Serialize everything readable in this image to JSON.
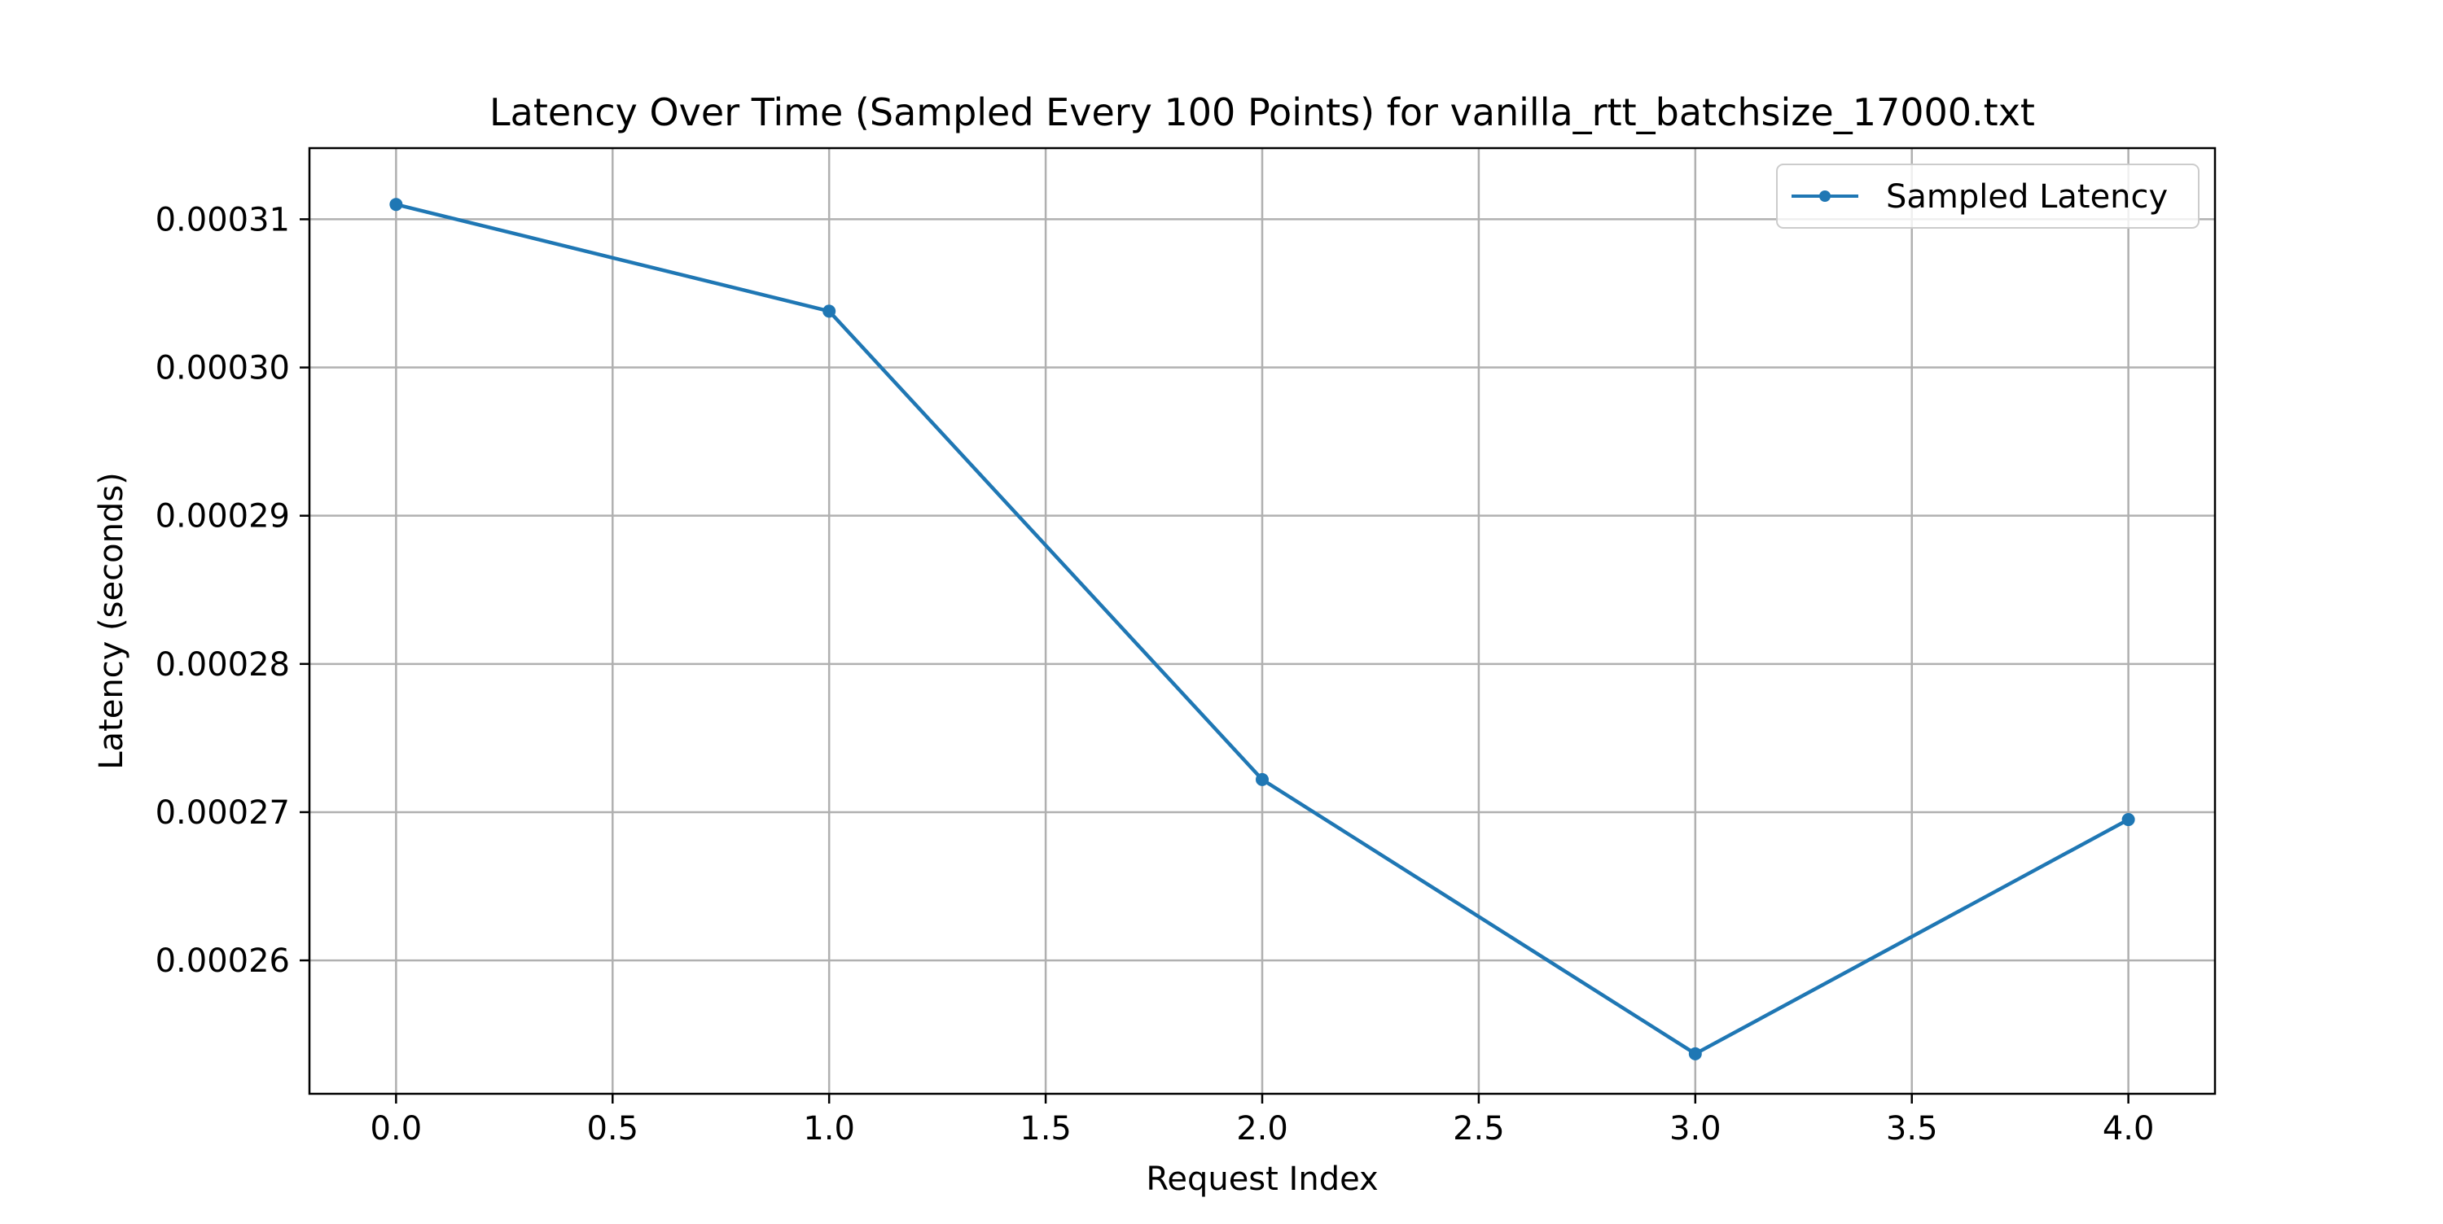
{
  "chart_data": {
    "type": "line",
    "title": "Latency Over Time (Sampled Every 100 Points) for vanilla_rtt_batchsize_17000.txt",
    "xlabel": "Request Index",
    "ylabel": "Latency (seconds)",
    "xlim": [
      -0.2,
      4.2
    ],
    "ylim": [
      0.000251,
      0.0003148
    ],
    "xticks": [
      0.0,
      0.5,
      1.0,
      1.5,
      2.0,
      2.5,
      3.0,
      3.5,
      4.0
    ],
    "xtick_labels": [
      "0.0",
      "0.5",
      "1.0",
      "1.5",
      "2.0",
      "2.5",
      "3.0",
      "3.5",
      "4.0"
    ],
    "yticks": [
      0.00026,
      0.00027,
      0.00028,
      0.00029,
      0.0003,
      0.00031
    ],
    "ytick_labels": [
      "0.00026",
      "0.00027",
      "0.00028",
      "0.00029",
      "0.00030",
      "0.00031"
    ],
    "grid": true,
    "legend_position": "upper right",
    "series": [
      {
        "name": "Sampled Latency",
        "color": "#1f77b4",
        "marker": "circle",
        "x": [
          0,
          1,
          2,
          3,
          4
        ],
        "y": [
          0.000311,
          0.0003038,
          0.0002722,
          0.0002537,
          0.0002695
        ]
      }
    ]
  }
}
